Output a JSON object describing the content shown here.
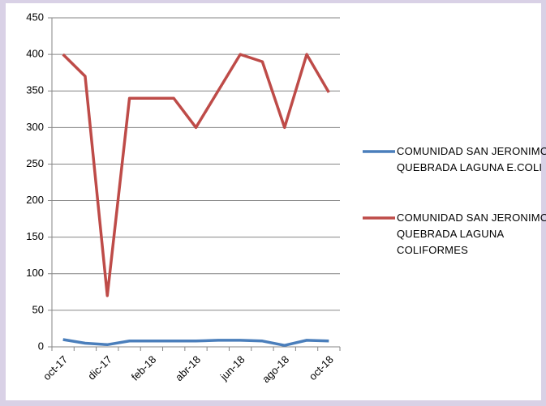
{
  "chart_data": {
    "type": "line",
    "categories": [
      "oct-17",
      null,
      "dic-17",
      null,
      "feb-18",
      null,
      "abr-18",
      null,
      "jun-18",
      null,
      "ago-18",
      null,
      "oct-18"
    ],
    "series": [
      {
        "name": "COMUNIDAD SAN JERONIMO QUEBRADA LAGUNA E.COLI",
        "color": "#4a7ebb",
        "values": [
          10,
          5,
          3,
          8,
          8,
          8,
          8,
          9,
          9,
          8,
          2,
          9,
          8
        ]
      },
      {
        "name": "COMUNIDAD SAN JERONIMO QUEBRADA LAGUNA COLIFORMES",
        "color": "#be4b48",
        "values": [
          400,
          370,
          70,
          340,
          340,
          340,
          300,
          350,
          400,
          390,
          300,
          400,
          348
        ]
      }
    ],
    "ylim": [
      0,
      450
    ],
    "yticks": [
      0,
      50,
      100,
      150,
      200,
      250,
      300,
      350,
      400,
      450
    ],
    "grid": true,
    "legend": "right"
  }
}
